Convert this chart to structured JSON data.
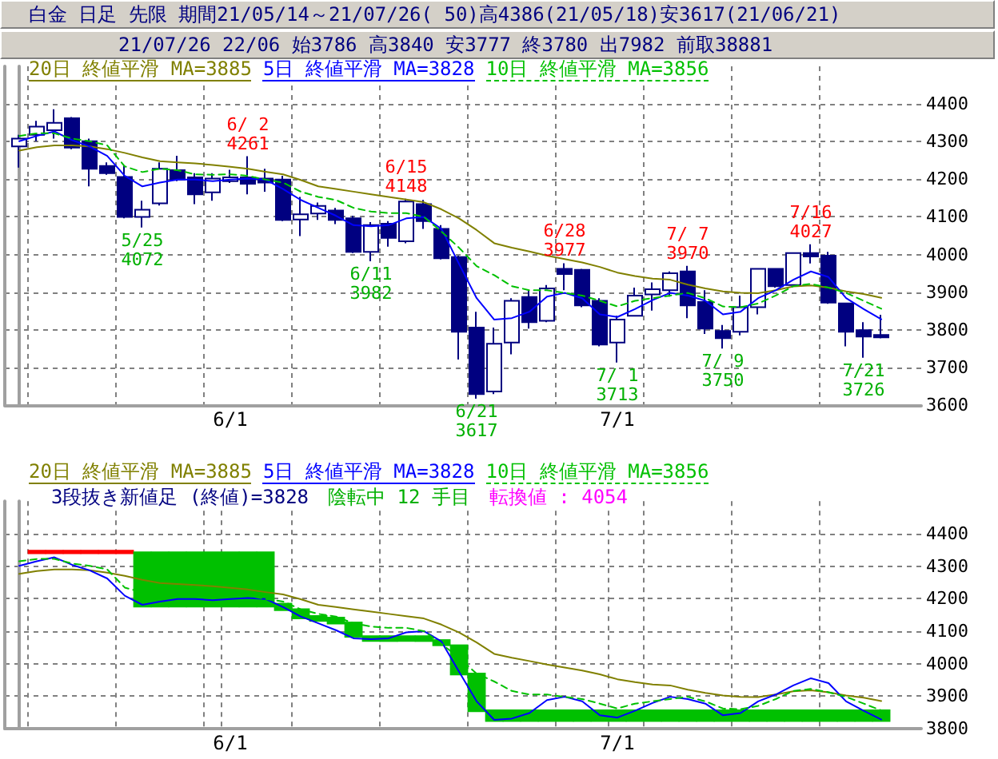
{
  "chart_data": [
    {
      "type": "candlestick",
      "title": "白金 日足 先限 期間21/05/14～21/07/26( 50)高4386(21/05/18)安3617(21/06/21)",
      "subtitle": "21/07/26 22/06 始3786 高3840 安3777 終3780 出7982 前取38881",
      "categories": [
        null,
        null,
        null,
        null,
        null,
        null,
        null,
        null,
        null,
        null,
        null,
        null,
        "6/1",
        null,
        null,
        null,
        null,
        null,
        null,
        null,
        null,
        null,
        null,
        null,
        null,
        null,
        null,
        null,
        null,
        null,
        null,
        null,
        null,
        null,
        "7/1",
        null,
        null,
        null,
        null,
        null,
        null,
        null,
        null,
        null,
        null,
        null,
        null,
        null,
        null,
        null
      ],
      "ohlc": [
        [
          4287,
          4318,
          4231,
          4308
        ],
        [
          4318,
          4355,
          4301,
          4340
        ],
        [
          4330,
          4386,
          4308,
          4350
        ],
        [
          4362,
          4365,
          4280,
          4284
        ],
        [
          4301,
          4308,
          4181,
          4228
        ],
        [
          4235,
          4245,
          4212,
          4216
        ],
        [
          4206,
          4237,
          4096,
          4100
        ],
        [
          4100,
          4143,
          4072,
          4119
        ],
        [
          4136,
          4245,
          4130,
          4228
        ],
        [
          4224,
          4262,
          4195,
          4199
        ],
        [
          4205,
          4216,
          4134,
          4160
        ],
        [
          4165,
          4216,
          4143,
          4202
        ],
        [
          4195,
          4225,
          4190,
          4205
        ],
        [
          4205,
          4261,
          4160,
          4188
        ],
        [
          4202,
          4228,
          4167,
          4191
        ],
        [
          4199,
          4209,
          4089,
          4092
        ],
        [
          4093,
          4153,
          4049,
          4107
        ],
        [
          4109,
          4138,
          4092,
          4129
        ],
        [
          4117,
          4124,
          4081,
          4092
        ],
        [
          4096,
          4103,
          4004,
          4007
        ],
        [
          4007,
          4086,
          3982,
          4078
        ],
        [
          4082,
          4089,
          4021,
          4044
        ],
        [
          4035,
          4148,
          4030,
          4141
        ],
        [
          4134,
          4145,
          4068,
          4089
        ],
        [
          4068,
          4078,
          3987,
          3990
        ],
        [
          3993,
          3997,
          3721,
          3795
        ],
        [
          3806,
          3848,
          3617,
          3629
        ],
        [
          3636,
          3806,
          3629,
          3763
        ],
        [
          3766,
          3884,
          3735,
          3877
        ],
        [
          3887,
          3905,
          3803,
          3820
        ],
        [
          3824,
          3919,
          3820,
          3910
        ],
        [
          3962,
          3977,
          3905,
          3948
        ],
        [
          3959,
          3962,
          3860,
          3865
        ],
        [
          3877,
          3884,
          3756,
          3761
        ],
        [
          3766,
          3837,
          3713,
          3827
        ],
        [
          3837,
          3912,
          3835,
          3891
        ],
        [
          3894,
          3926,
          3851,
          3908
        ],
        [
          3905,
          3955,
          3888,
          3950
        ],
        [
          3955,
          3970,
          3831,
          3865
        ],
        [
          3874,
          3905,
          3789,
          3803
        ],
        [
          3797,
          3813,
          3750,
          3778
        ],
        [
          3795,
          3891,
          3785,
          3860
        ],
        [
          3860,
          3962,
          3841,
          3962
        ],
        [
          3962,
          3962,
          3912,
          3916
        ],
        [
          3919,
          4004,
          3919,
          4004
        ],
        [
          4004,
          4027,
          3976,
          3995
        ],
        [
          3997,
          4007,
          3869,
          3872
        ],
        [
          3870,
          3870,
          3756,
          3795
        ],
        [
          3799,
          3820,
          3726,
          3782
        ],
        [
          3786,
          3840,
          3777,
          3780
        ]
      ],
      "color": "#000080",
      "series": [
        {
          "name": "20日 終値平滑 MA=3885",
          "type": "line",
          "color": "#808000",
          "line_style": "solid",
          "values": [
            4276,
            4285,
            4290,
            4290,
            4287,
            4280,
            4270,
            4258,
            4248,
            4245,
            4242,
            4238,
            4233,
            4228,
            4220,
            4213,
            4198,
            4181,
            4174,
            4167,
            4160,
            4153,
            4146,
            4139,
            4120,
            4096,
            4065,
            4030,
            4018,
            4008,
            3997,
            3988,
            3979,
            3967,
            3952,
            3943,
            3936,
            3933,
            3920,
            3910,
            3902,
            3898,
            3897,
            3905,
            3915,
            3918,
            3912,
            3902,
            3895,
            3885
          ]
        },
        {
          "name": "5日 終値平滑 MA=3828",
          "type": "line",
          "color": "#0000ff",
          "line_style": "solid",
          "values": [
            4301,
            4315,
            4327,
            4304,
            4287,
            4262,
            4209,
            4181,
            4191,
            4199,
            4199,
            4195,
            4199,
            4202,
            4199,
            4174,
            4145,
            4124,
            4103,
            4078,
            4075,
            4078,
            4096,
            4100,
            4068,
            3975,
            3884,
            3827,
            3831,
            3848,
            3888,
            3898,
            3884,
            3841,
            3834,
            3855,
            3879,
            3898,
            3891,
            3877,
            3841,
            3848,
            3884,
            3905,
            3933,
            3955,
            3940,
            3884,
            3855,
            3828
          ]
        },
        {
          "name": "10日 終値平滑 MA=3856",
          "type": "line",
          "color": "#00c000",
          "line_style": "dashed",
          "values": [
            4315,
            4322,
            4322,
            4308,
            4301,
            4290,
            4234,
            4219,
            4228,
            4224,
            4213,
            4212,
            4213,
            4209,
            4199,
            4191,
            4167,
            4153,
            4145,
            4124,
            4114,
            4110,
            4110,
            4100,
            4061,
            4018,
            3969,
            3945,
            3916,
            3905,
            3905,
            3898,
            3891,
            3877,
            3862,
            3877,
            3884,
            3891,
            3898,
            3884,
            3862,
            3860,
            3870,
            3891,
            3916,
            3922,
            3912,
            3898,
            3877,
            3856
          ]
        }
      ],
      "ylim": [
        3600,
        4500
      ],
      "yticks": [
        3600,
        3700,
        3800,
        3900,
        4000,
        4100,
        4200,
        4300,
        4400
      ],
      "grid": true,
      "legend": "top left",
      "marker": "none",
      "annotations": [
        {
          "text": "5/25\n4072",
          "y": 4072
        },
        {
          "text": "6/ 2\n4261",
          "y": 4261
        },
        {
          "text": "6/11\n3982",
          "y": 3982
        },
        {
          "text": "6/15\n4148",
          "y": 4148
        },
        {
          "text": "6/21\n3617",
          "y": 3617
        },
        {
          "text": "6/28\n3977",
          "y": 3977
        },
        {
          "text": "7/ 1\n3713",
          "y": 3713
        },
        {
          "text": "7/ 7\n3970",
          "y": 3970
        },
        {
          "text": "7/ 9\n3750",
          "y": 3750
        },
        {
          "text": "7/16\n4027",
          "y": 4027
        },
        {
          "text": "7/21\n3726",
          "y": 3726
        }
      ]
    },
    {
      "type": "bar",
      "categories": [
        null,
        null,
        null,
        null,
        null,
        null,
        null,
        null,
        null,
        null,
        null,
        null,
        "6/1",
        null,
        null,
        null,
        null,
        null,
        null,
        null,
        null,
        null,
        null,
        null,
        null,
        null,
        null,
        null,
        null,
        null,
        null,
        null,
        null,
        null,
        "7/1",
        null,
        null,
        null,
        null,
        null,
        null,
        null,
        null,
        null,
        null,
        null,
        null,
        null,
        null,
        null
      ],
      "series": [
        {
          "base": [
            null,
            4337,
            4337,
            4337,
            4337,
            4337,
            4337,
            4345,
            4345,
            4345,
            4345,
            4345,
            4345,
            4345,
            4345,
            4187,
            4170,
            4149,
            4144,
            4129,
            4087,
            4087,
            4087,
            4087,
            4075,
            4059,
            3972,
            3859,
            3859,
            3859,
            3859,
            3859,
            3859,
            3859,
            3859,
            3859,
            3859,
            3859,
            3859,
            3859,
            3859,
            3859,
            3859,
            3859,
            3859,
            3859,
            3859,
            3859,
            3859,
            3859
          ],
          "values": [
            null,
            13,
            13,
            13,
            13,
            13,
            13,
            -172,
            -172,
            -172,
            -172,
            -172,
            -172,
            -172,
            -172,
            -25,
            -33,
            -20,
            -23,
            -49,
            -20,
            -20,
            -20,
            -20,
            -21,
            -95,
            -121,
            -38,
            -38,
            -38,
            -38,
            -38,
            -38,
            -38,
            -38,
            -38,
            -38,
            -38,
            -38,
            -38,
            -38,
            -38,
            -38,
            -38,
            -38,
            -38,
            -38,
            -38,
            -38,
            -38
          ],
          "colors": [
            null,
            "#ff0000",
            "#ff0000",
            "#ff0000",
            "#ff0000",
            "#ff0000",
            "#ff0000",
            "#00c000",
            "#00c000",
            "#00c000",
            "#00c000",
            "#00c000",
            "#00c000",
            "#00c000",
            "#00c000",
            "#00c000",
            "#00c000",
            "#00c000",
            "#00c000",
            "#00c000",
            "#00c000",
            "#00c000",
            "#00c000",
            "#00c000",
            "#00c000",
            "#00c000",
            "#00c000",
            "#00c000",
            "#00c000",
            "#00c000",
            "#00c000",
            "#00c000",
            "#00c000",
            "#00c000",
            "#00c000",
            "#00c000",
            "#00c000",
            "#00c000",
            "#00c000",
            "#00c000",
            "#00c000",
            "#00c000",
            "#00c000",
            "#00c000",
            "#00c000",
            "#00c000",
            "#00c000",
            "#00c000",
            "#00c000",
            "#00c000"
          ]
        },
        {
          "name": "20日 終値平滑 MA=3885",
          "type": "line",
          "color": "#808000",
          "line_style": "solid",
          "values": [
            4276,
            4285,
            4290,
            4290,
            4287,
            4280,
            4270,
            4258,
            4248,
            4245,
            4242,
            4238,
            4233,
            4228,
            4220,
            4213,
            4198,
            4181,
            4174,
            4167,
            4160,
            4153,
            4146,
            4139,
            4120,
            4096,
            4065,
            4030,
            4018,
            4008,
            3997,
            3988,
            3979,
            3967,
            3952,
            3943,
            3936,
            3933,
            3920,
            3910,
            3902,
            3898,
            3897,
            3905,
            3915,
            3918,
            3912,
            3902,
            3895,
            3885
          ]
        },
        {
          "name": "5日 終値平滑 MA=3828",
          "type": "line",
          "color": "#0000ff",
          "line_style": "solid",
          "values": [
            4301,
            4315,
            4327,
            4304,
            4287,
            4262,
            4209,
            4181,
            4191,
            4199,
            4199,
            4195,
            4199,
            4202,
            4199,
            4174,
            4145,
            4124,
            4103,
            4078,
            4075,
            4078,
            4096,
            4100,
            4068,
            3975,
            3884,
            3827,
            3831,
            3848,
            3888,
            3898,
            3884,
            3841,
            3834,
            3855,
            3879,
            3898,
            3891,
            3877,
            3841,
            3848,
            3884,
            3905,
            3933,
            3955,
            3940,
            3884,
            3855,
            3828
          ]
        },
        {
          "name": "10日 終値平滑 MA=3856",
          "type": "line",
          "color": "#00c000",
          "line_style": "dashed",
          "values": [
            4315,
            4322,
            4322,
            4308,
            4301,
            4290,
            4234,
            4219,
            4228,
            4224,
            4213,
            4212,
            4213,
            4209,
            4199,
            4191,
            4167,
            4153,
            4145,
            4124,
            4114,
            4110,
            4110,
            4100,
            4061,
            4018,
            3969,
            3945,
            3916,
            3905,
            3905,
            3898,
            3891,
            3877,
            3862,
            3877,
            3884,
            3891,
            3898,
            3884,
            3862,
            3860,
            3870,
            3891,
            3916,
            3922,
            3912,
            3898,
            3877,
            3856
          ]
        }
      ],
      "ylim": [
        3800,
        4500
      ],
      "yticks": [
        3800,
        3900,
        4000,
        4100,
        4200,
        4300,
        4400
      ],
      "grid": true,
      "legend": "top left",
      "marker": "none",
      "annotations": [
        "3段抜き新値足 (終値)=3828",
        "陰転中 12 手目",
        "転換値 : 4054"
      ]
    }
  ]
}
